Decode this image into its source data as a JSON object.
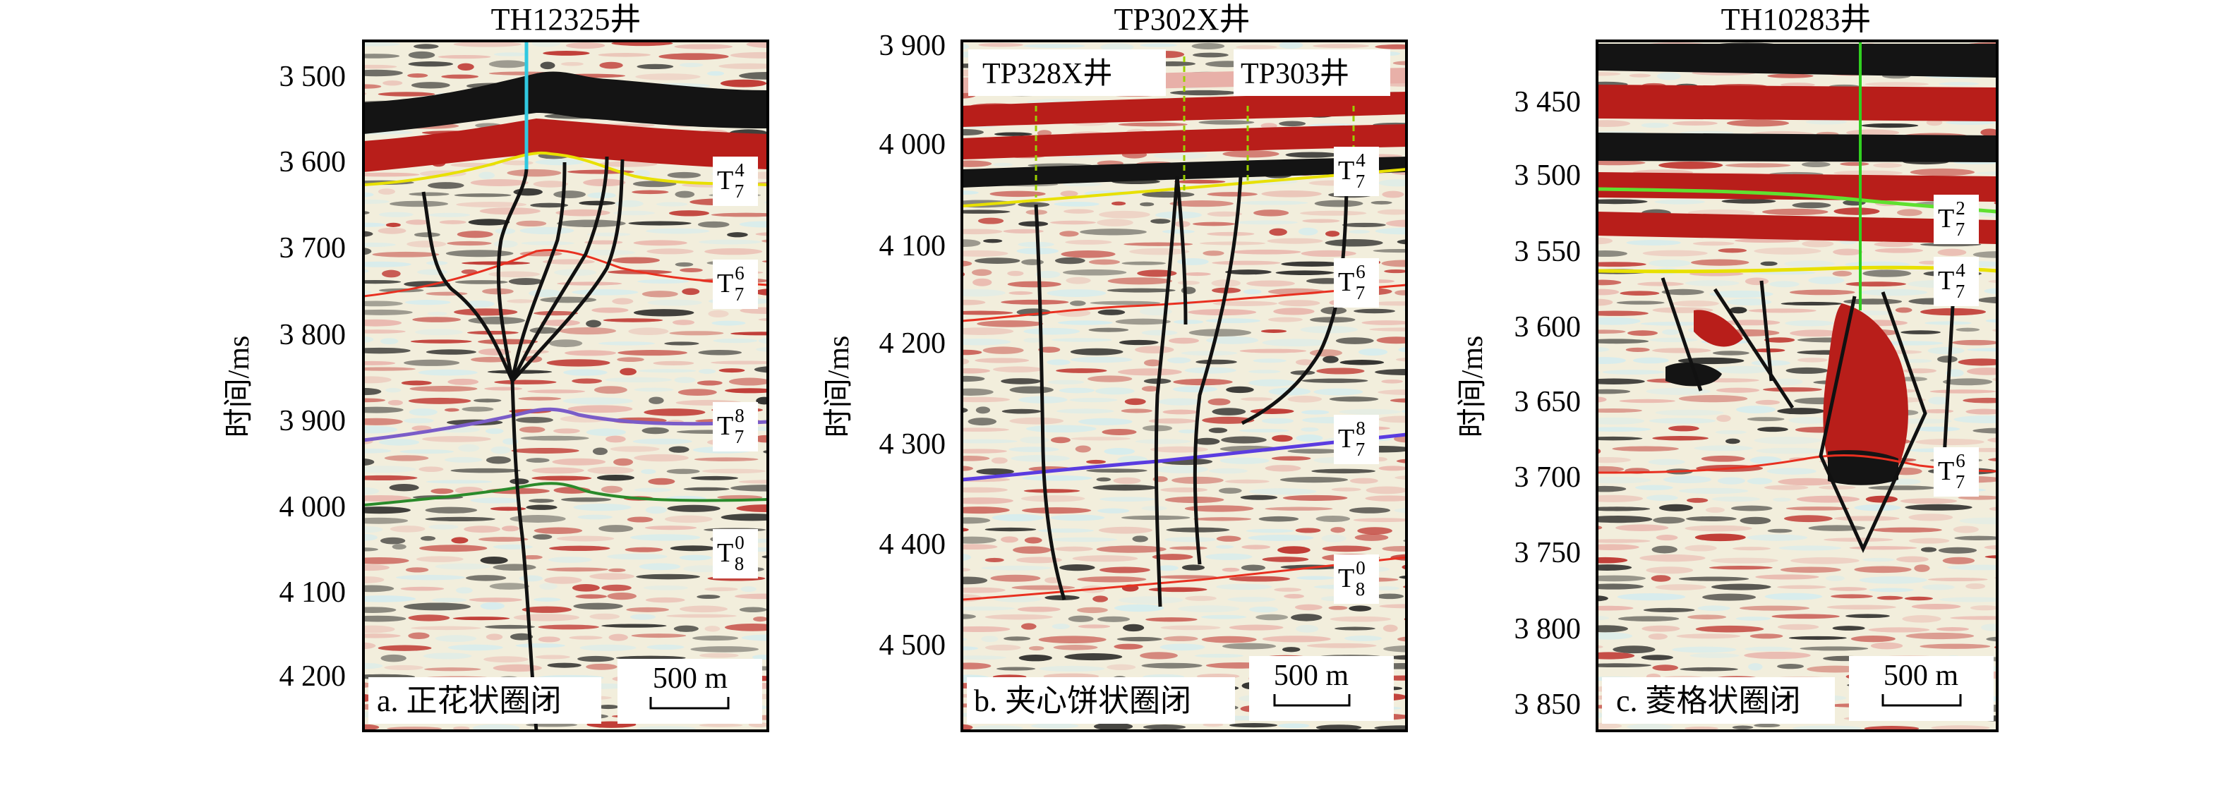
{
  "figure": {
    "y_axis_label": "时间/ms",
    "panels": [
      {
        "id": "a",
        "title": "TH12325井",
        "caption": "a. 正花状圈闭",
        "scale_bar": "500 m",
        "y_ticks": [
          "3 500",
          "3 600",
          "3 700",
          "3 800",
          "3 900",
          "4 000",
          "4 100",
          "4 200"
        ],
        "horizons": [
          {
            "base": "T",
            "sub": "7",
            "sup": "4",
            "color": "#e8e000"
          },
          {
            "base": "T",
            "sub": "7",
            "sup": "6",
            "color": "#e83020"
          },
          {
            "base": "T",
            "sub": "7",
            "sup": "8",
            "color": "#7a5cc8"
          },
          {
            "base": "T",
            "sub": "8",
            "sup": "0",
            "color": "#2a8a2a"
          }
        ],
        "well_line_color": "#30c8e0"
      },
      {
        "id": "b",
        "title": "TP302X井",
        "caption": "b. 夹心饼状圈闭",
        "scale_bar": "500 m",
        "y_ticks": [
          "3 900",
          "4 000",
          "4 100",
          "4 200",
          "4 300",
          "4 400",
          "4 500"
        ],
        "well_labels": [
          "TP328X井",
          "TP303井"
        ],
        "horizons": [
          {
            "base": "T",
            "sub": "7",
            "sup": "4",
            "color": "#e8e000"
          },
          {
            "base": "T",
            "sub": "7",
            "sup": "6",
            "color": "#e83020"
          },
          {
            "base": "T",
            "sub": "7",
            "sup": "8",
            "color": "#5a3ce0"
          },
          {
            "base": "T",
            "sub": "8",
            "sup": "0",
            "color": "#e83020"
          }
        ],
        "well_line_color": "#9ad000"
      },
      {
        "id": "c",
        "title": "TH10283井",
        "caption": "c. 菱格状圈闭",
        "scale_bar": "500 m",
        "y_ticks": [
          "3 450",
          "3 500",
          "3 550",
          "3 600",
          "3 650",
          "3 700",
          "3 750",
          "3 800",
          "3 850"
        ],
        "horizons": [
          {
            "base": "T",
            "sub": "7",
            "sup": "2",
            "color": "#60e030"
          },
          {
            "base": "T",
            "sub": "7",
            "sup": "4",
            "color": "#e8e000"
          },
          {
            "base": "T",
            "sub": "7",
            "sup": "6",
            "color": "#e83020"
          }
        ],
        "well_line_color": "#30d020"
      }
    ]
  },
  "colors": {
    "red": "#b81e1a",
    "black": "#141414",
    "pink": "#e8b0a8",
    "pale": "#f2eedc",
    "cyan": "#d2ecf0",
    "fault": "#111111"
  }
}
